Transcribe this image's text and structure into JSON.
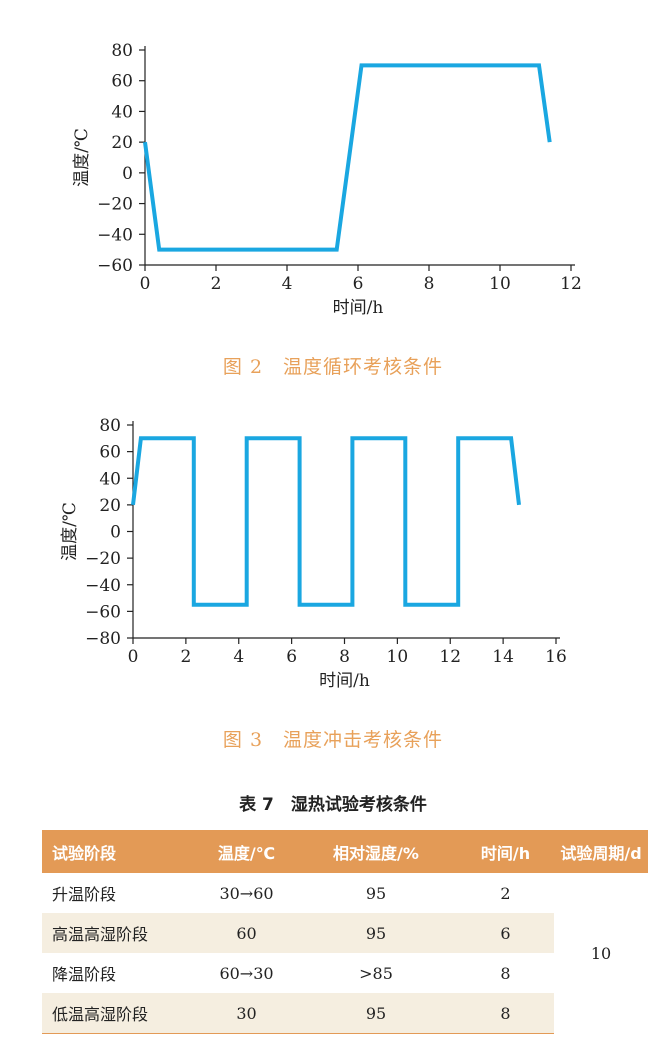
{
  "figure2": {
    "caption": "图 2　温度循环考核条件",
    "chart_data": {
      "type": "line",
      "xlabel": "时间/h",
      "ylabel": "温度/℃",
      "xlim": [
        0,
        12
      ],
      "ylim": [
        -60,
        80
      ],
      "xticks": [
        0,
        2,
        4,
        6,
        8,
        10,
        12
      ],
      "yticks": [
        80,
        60,
        40,
        20,
        0,
        -20,
        -40,
        -60
      ],
      "color": "#1aa7e1",
      "x": [
        0,
        0.4,
        5.4,
        6.1,
        11.1,
        11.4
      ],
      "y": [
        20,
        -50,
        -50,
        70,
        70,
        20
      ]
    }
  },
  "figure3": {
    "caption": "图 3　温度冲击考核条件",
    "chart_data": {
      "type": "line",
      "xlabel": "时间/h",
      "ylabel": "温度/℃",
      "xlim": [
        0,
        16
      ],
      "ylim": [
        -80,
        80
      ],
      "xticks": [
        0,
        2,
        4,
        6,
        8,
        10,
        12,
        14,
        16
      ],
      "yticks": [
        80,
        60,
        40,
        20,
        0,
        -20,
        -40,
        -60,
        -80
      ],
      "color": "#1aa7e1",
      "x": [
        0,
        0.3,
        2.3,
        2.3,
        4.3,
        4.3,
        6.3,
        6.3,
        8.3,
        8.3,
        10.3,
        10.3,
        12.3,
        12.3,
        14.3,
        14.6
      ],
      "y": [
        20,
        70,
        70,
        -55,
        -55,
        70,
        70,
        -55,
        -55,
        70,
        70,
        -55,
        -55,
        70,
        70,
        20
      ]
    }
  },
  "table": {
    "title": "表 7　湿热试验考核条件",
    "headers": [
      "试验阶段",
      "温度/℃",
      "相对湿度/%",
      "时间/h",
      "试验周期/d"
    ],
    "rows": [
      [
        "升温阶段",
        "30→60",
        "95",
        "2"
      ],
      [
        "高温高湿阶段",
        "60",
        "95",
        "6"
      ],
      [
        "降温阶段",
        "60→30",
        ">85",
        "8"
      ],
      [
        "低温高湿阶段",
        "30",
        "95",
        "8"
      ]
    ],
    "period": "10",
    "header_color": "#e39a56",
    "shade_color": "#f5eee0"
  }
}
